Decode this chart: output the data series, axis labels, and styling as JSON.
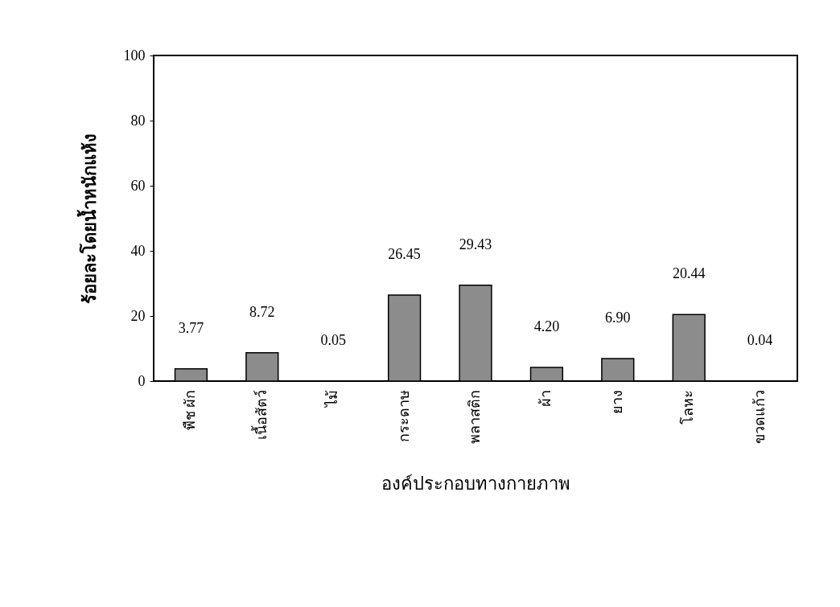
{
  "chart_data": {
    "type": "bar",
    "categories": [
      "พืช ผัก",
      "เนื้อสัตว์",
      "ไม้",
      "กระดาษ",
      "พลาสติก",
      "ผ้า",
      "ยาง",
      "โลหะ",
      "ขวดแก้ว"
    ],
    "values": [
      3.77,
      8.72,
      0.05,
      26.45,
      29.43,
      4.2,
      6.9,
      20.44,
      0.04
    ],
    "value_labels": [
      "3.77",
      "8.72",
      "0.05",
      "26.45",
      "29.43",
      "4.20",
      "6.90",
      "20.44",
      "0.04"
    ],
    "color": "#8c8c8c",
    "xlabel": "องค์ประกอบทางกายภาพ",
    "ylabel": "ร้อยละโดยน้ำหนักแห้ง",
    "ylim": [
      0,
      100
    ],
    "yticks": [
      0,
      20,
      40,
      60,
      80,
      100
    ],
    "grid": false
  }
}
